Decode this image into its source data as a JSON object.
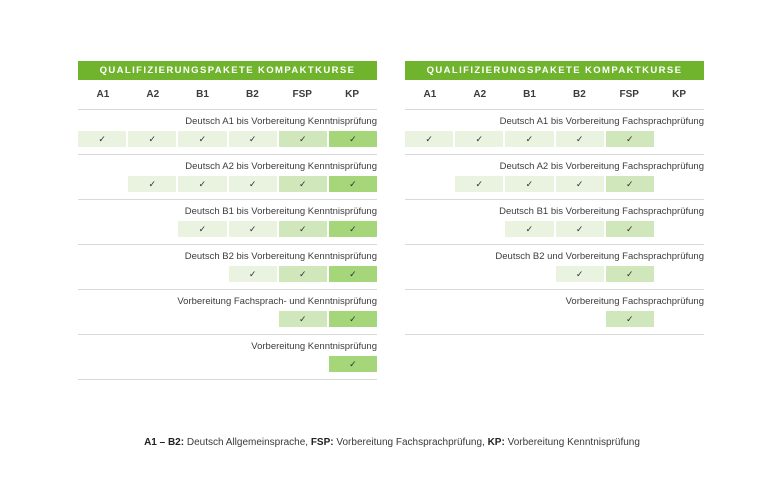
{
  "colors": {
    "header_green": "#70b42e",
    "cell_light": "#e9f3e0",
    "cell_medium": "#d0e6bb",
    "cell_dark": "#a6d67a",
    "separator": "#d9d9d9"
  },
  "icons": {
    "check": "✓"
  },
  "tables": [
    {
      "title": "QUALIFIZIERUNGSPAKETE KOMPAKTKURSE",
      "columns": [
        "A1",
        "A2",
        "B1",
        "B2",
        "FSP",
        "KP"
      ],
      "rows": [
        {
          "label": "Deutsch A1 bis Vorbereitung Kenntnisprüfung",
          "checks": [
            true,
            true,
            true,
            true,
            true,
            true
          ]
        },
        {
          "label": "Deutsch A2 bis Vorbereitung Kenntnisprüfung",
          "checks": [
            false,
            true,
            true,
            true,
            true,
            true
          ]
        },
        {
          "label": "Deutsch B1 bis Vorbereitung Kenntnisprüfung",
          "checks": [
            false,
            false,
            true,
            true,
            true,
            true
          ]
        },
        {
          "label": "Deutsch B2 bis Vorbereitung Kenntnisprüfung",
          "checks": [
            false,
            false,
            false,
            true,
            true,
            true
          ]
        },
        {
          "label": "Vorbereitung Fachsprach- und Kenntnisprüfung",
          "checks": [
            false,
            false,
            false,
            false,
            true,
            true
          ]
        },
        {
          "label": "Vorbereitung Kenntnisprüfung",
          "checks": [
            false,
            false,
            false,
            false,
            false,
            true
          ]
        }
      ]
    },
    {
      "title": "QUALIFIZIERUNGSPAKETE KOMPAKTKURSE",
      "columns": [
        "A1",
        "A2",
        "B1",
        "B2",
        "FSP",
        "KP"
      ],
      "rows": [
        {
          "label": "Deutsch A1 bis Vorbereitung Fachsprachprüfung",
          "checks": [
            true,
            true,
            true,
            true,
            true,
            false
          ]
        },
        {
          "label": "Deutsch A2 bis Vorbereitung Fachsprachprüfung",
          "checks": [
            false,
            true,
            true,
            true,
            true,
            false
          ]
        },
        {
          "label": "Deutsch B1 bis Vorbereitung Fachsprachprüfung",
          "checks": [
            false,
            false,
            true,
            true,
            true,
            false
          ]
        },
        {
          "label": "Deutsch B2 und Vorbereitung Fachsprachprüfung",
          "checks": [
            false,
            false,
            false,
            true,
            true,
            false
          ]
        },
        {
          "label": "Vorbereitung Fachsprachprüfung",
          "checks": [
            false,
            false,
            false,
            false,
            true,
            false
          ]
        }
      ]
    }
  ],
  "footer": {
    "segments": [
      {
        "bold": "A1 – B2:",
        "text": " Deutsch Allgemeinsprache, "
      },
      {
        "bold": "FSP:",
        "text": " Vorbereitung Fachsprachprüfung, "
      },
      {
        "bold": "KP:",
        "text": " Vorbereitung Kenntnisprüfung"
      }
    ]
  }
}
